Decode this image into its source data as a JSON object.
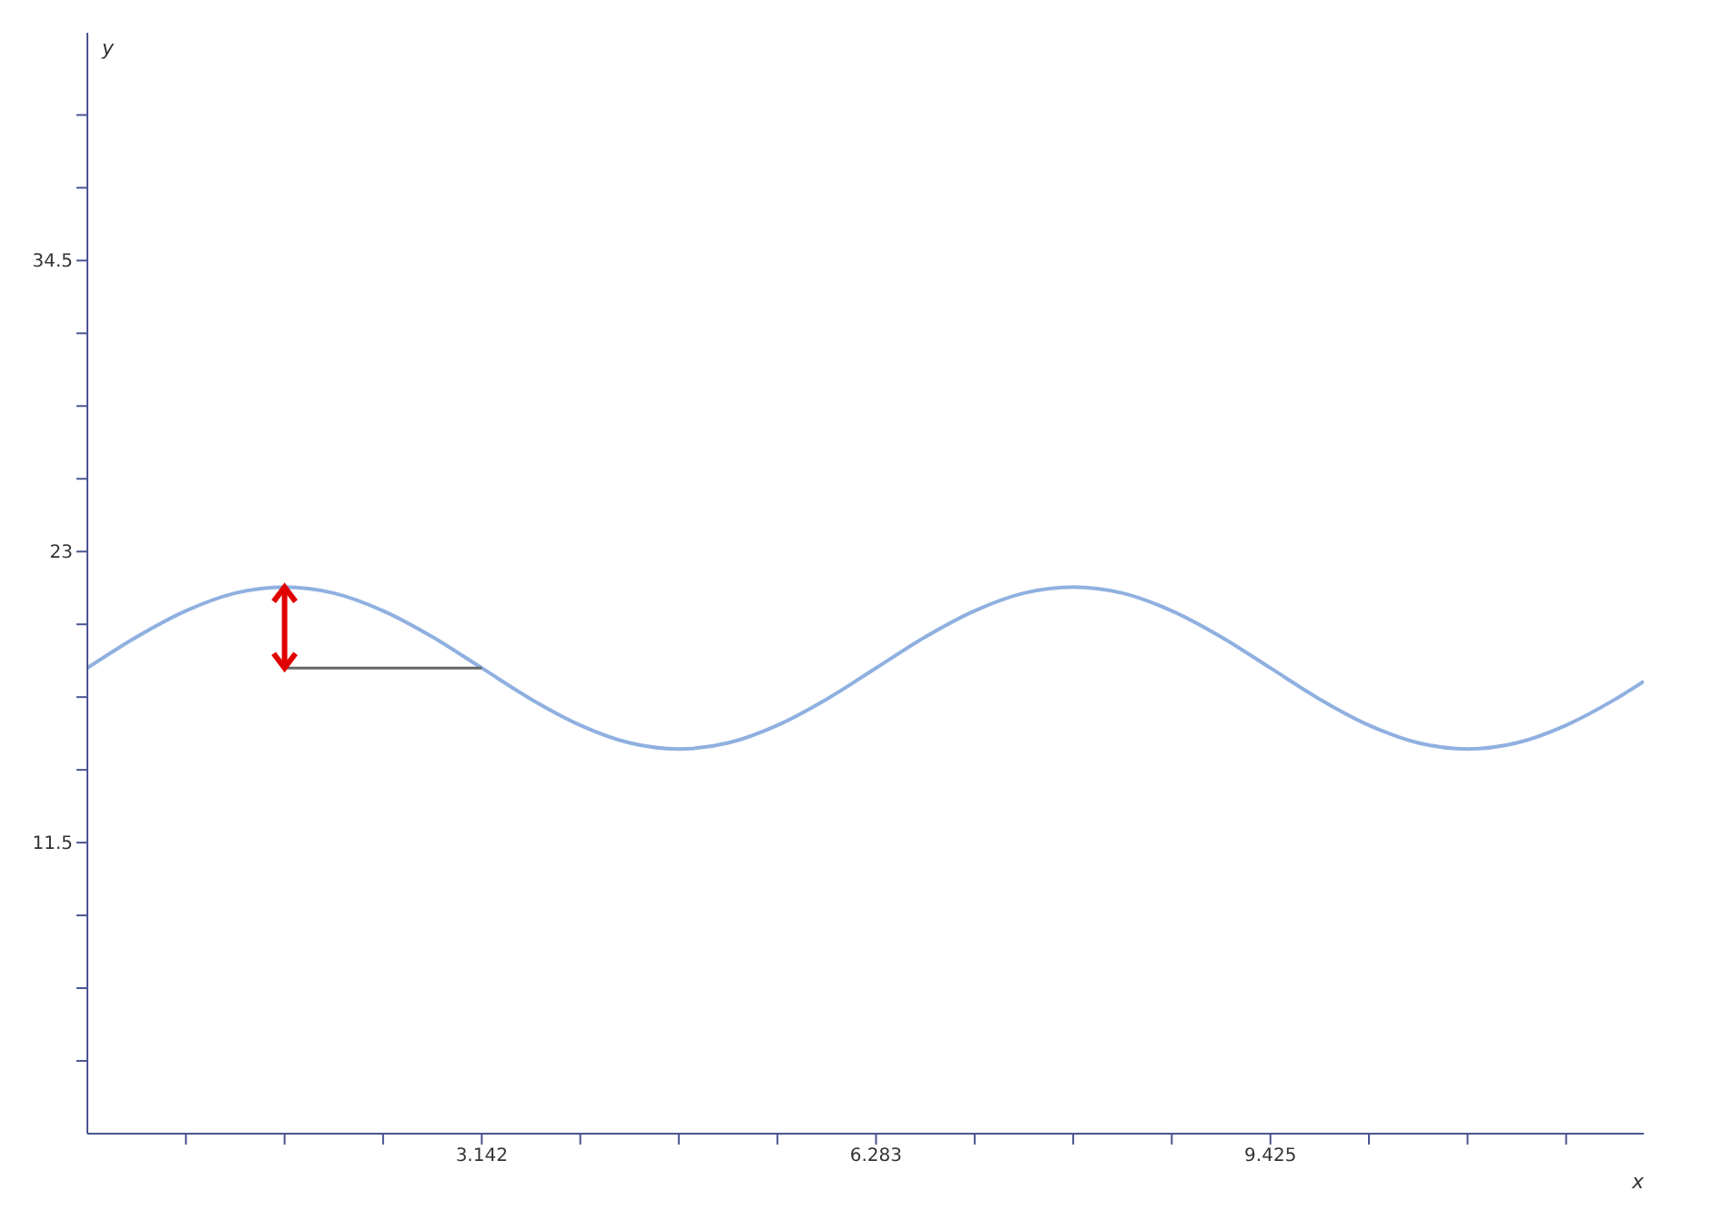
{
  "chart_data": {
    "type": "line",
    "xlabel": "x",
    "ylabel": "y",
    "xlim": [
      0,
      12.4
    ],
    "ylim": [
      0,
      43.5
    ],
    "xticks": [
      {
        "value": 0.785,
        "label": null
      },
      {
        "value": 1.571,
        "label": null
      },
      {
        "value": 2.356,
        "label": null
      },
      3.142,
      {
        "value": 3.927,
        "label": null
      },
      {
        "value": 4.712,
        "label": null
      },
      {
        "value": 5.498,
        "label": null
      },
      6.283,
      {
        "value": 7.069,
        "label": null
      },
      {
        "value": 7.854,
        "label": null
      },
      {
        "value": 8.639,
        "label": null
      },
      9.425,
      {
        "value": 10.21,
        "label": null
      },
      {
        "value": 10.996,
        "label": null
      },
      {
        "value": 11.781,
        "label": null
      }
    ],
    "yticks": [
      {
        "value": 2.875,
        "label": null
      },
      {
        "value": 5.75,
        "label": null
      },
      {
        "value": 8.625,
        "label": null
      },
      11.5,
      {
        "value": 14.375,
        "label": null
      },
      {
        "value": 17.25,
        "label": null
      },
      {
        "value": 20.125,
        "label": null
      },
      23,
      {
        "value": 25.875,
        "label": null
      },
      {
        "value": 28.75,
        "label": null
      },
      {
        "value": 31.625,
        "label": null
      },
      34.5,
      {
        "value": 37.375,
        "label": null
      },
      {
        "value": 40.25,
        "label": null
      }
    ],
    "marker": "none",
    "line_style": "solid",
    "series": [
      {
        "color": "#8fb0e0",
        "x": [
          0,
          0.393,
          0.785,
          1.178,
          1.571,
          1.963,
          2.356,
          2.749,
          3.142,
          3.534,
          3.927,
          4.32,
          4.712,
          5.105,
          5.498,
          5.89,
          6.283,
          6.676,
          7.069,
          7.461,
          7.854,
          8.247,
          8.639,
          9.032,
          9.425,
          9.817,
          10.21,
          10.603,
          10.996,
          11.388,
          11.781,
          12.174,
          12.4
        ],
        "values": [
          18.4,
          19.63,
          20.66,
          21.36,
          21.6,
          21.36,
          20.66,
          19.63,
          18.4,
          17.17,
          16.14,
          15.44,
          15.2,
          15.44,
          16.14,
          17.17,
          18.4,
          19.63,
          20.66,
          21.36,
          21.6,
          21.36,
          20.66,
          19.63,
          18.4,
          17.17,
          16.14,
          15.44,
          15.2,
          15.44,
          16.14,
          17.17,
          17.87
        ]
      },
      {
        "color": "#666666",
        "x": [
          1.571,
          3.142
        ],
        "values": [
          18.4,
          18.4
        ]
      }
    ]
  }
}
